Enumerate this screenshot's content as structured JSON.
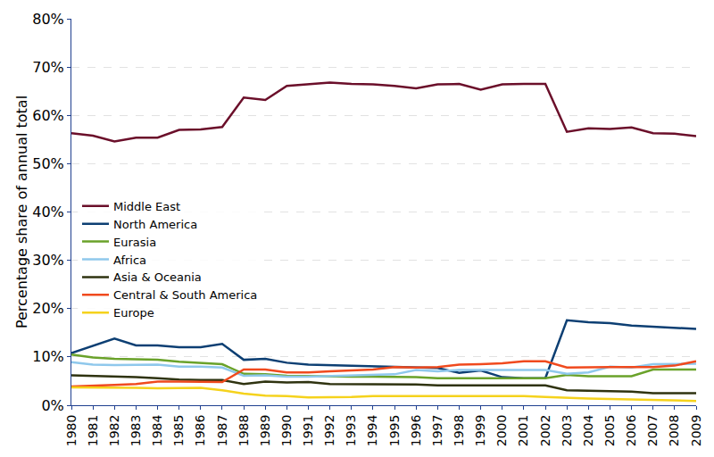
{
  "chart_data": {
    "type": "line",
    "y_label": "Percentage share of annual total",
    "categories": [
      "1980",
      "1981",
      "1982",
      "1983",
      "1984",
      "1985",
      "1986",
      "1987",
      "1988",
      "1989",
      "1990",
      "1991",
      "1992",
      "1993",
      "1994",
      "1995",
      "1996",
      "1997",
      "1998",
      "1999",
      "2000",
      "2001",
      "2002",
      "2003",
      "2004",
      "2005",
      "2006",
      "2007",
      "2008",
      "2009"
    ],
    "series": [
      {
        "name": "Middle East",
        "color": "#6b0f2a",
        "values": [
          56.3,
          55.8,
          54.6,
          55.4,
          55.4,
          57.0,
          57.1,
          57.6,
          63.7,
          63.2,
          66.1,
          66.4,
          66.8,
          66.5,
          66.4,
          66.1,
          65.6,
          66.4,
          66.5,
          65.3,
          66.4,
          66.5,
          66.5,
          56.6,
          57.3,
          57.2,
          57.5,
          56.3,
          56.2,
          55.7
        ]
      },
      {
        "name": "North America",
        "color": "#0d3f73",
        "values": [
          10.8,
          12.3,
          13.8,
          12.4,
          12.4,
          12.0,
          12.0,
          12.7,
          9.4,
          9.6,
          8.8,
          8.4,
          8.3,
          8.2,
          8.0,
          7.9,
          7.8,
          7.7,
          6.7,
          7.2,
          5.8,
          5.6,
          5.6,
          17.6,
          17.2,
          17.0,
          16.5,
          16.3,
          16.0,
          15.8
        ]
      },
      {
        "name": "Eurasia",
        "color": "#6aa22a",
        "values": [
          10.5,
          9.9,
          9.6,
          9.5,
          9.4,
          9.0,
          8.8,
          8.5,
          6.5,
          6.4,
          6.1,
          6.0,
          5.9,
          5.9,
          5.9,
          5.9,
          5.8,
          5.6,
          5.6,
          5.6,
          5.6,
          5.6,
          5.6,
          6.3,
          6.0,
          6.0,
          6.0,
          7.4,
          7.4,
          7.4
        ]
      },
      {
        "name": "Africa",
        "color": "#8fc8ec",
        "values": [
          8.9,
          8.4,
          8.3,
          8.4,
          8.4,
          8.0,
          8.0,
          7.8,
          6.1,
          6.2,
          5.9,
          5.9,
          6.0,
          6.1,
          6.2,
          6.4,
          7.3,
          7.0,
          7.3,
          7.3,
          7.2,
          7.3,
          7.3,
          6.5,
          6.8,
          8.0,
          7.8,
          8.5,
          8.6,
          8.6
        ]
      },
      {
        "name": "Asia & Oceania",
        "color": "#2f3310",
        "values": [
          6.2,
          6.1,
          5.9,
          5.8,
          5.6,
          5.3,
          5.2,
          5.2,
          4.4,
          4.9,
          4.7,
          4.8,
          4.4,
          4.4,
          4.4,
          4.3,
          4.3,
          4.1,
          4.1,
          4.1,
          4.2,
          4.2,
          4.1,
          3.1,
          3.0,
          2.9,
          2.8,
          2.5,
          2.5,
          2.5
        ]
      },
      {
        "name": "Central & South America",
        "color": "#f04a1e",
        "values": [
          3.9,
          4.0,
          4.2,
          4.4,
          4.9,
          4.9,
          4.8,
          4.8,
          7.4,
          7.4,
          6.8,
          6.8,
          7.0,
          7.2,
          7.4,
          7.9,
          7.8,
          7.9,
          8.4,
          8.5,
          8.7,
          9.1,
          9.1,
          7.8,
          7.9,
          7.9,
          7.9,
          7.9,
          8.2,
          9.1
        ]
      },
      {
        "name": "Europe",
        "color": "#f5d21c",
        "values": [
          3.7,
          3.7,
          3.6,
          3.6,
          3.5,
          3.5,
          3.6,
          3.1,
          2.4,
          2.0,
          1.9,
          1.6,
          1.6,
          1.7,
          1.9,
          1.9,
          1.8,
          1.9,
          1.8,
          1.9,
          1.9,
          1.9,
          1.7,
          1.5,
          1.4,
          1.3,
          1.2,
          1.1,
          1.0,
          0.9
        ]
      }
    ],
    "ylim": [
      0,
      80
    ],
    "yticks": [
      {
        "value": 0,
        "label": "0%"
      },
      {
        "value": 10,
        "label": "10%"
      },
      {
        "value": 20,
        "label": "20%"
      },
      {
        "value": 30,
        "label": "30%"
      },
      {
        "value": 40,
        "label": "40%"
      },
      {
        "value": 50,
        "label": "50%"
      },
      {
        "value": 60,
        "label": "60%"
      },
      {
        "value": 70,
        "label": "70%"
      },
      {
        "value": 80,
        "label": "80%"
      }
    ],
    "grid": true,
    "legend": "left"
  }
}
